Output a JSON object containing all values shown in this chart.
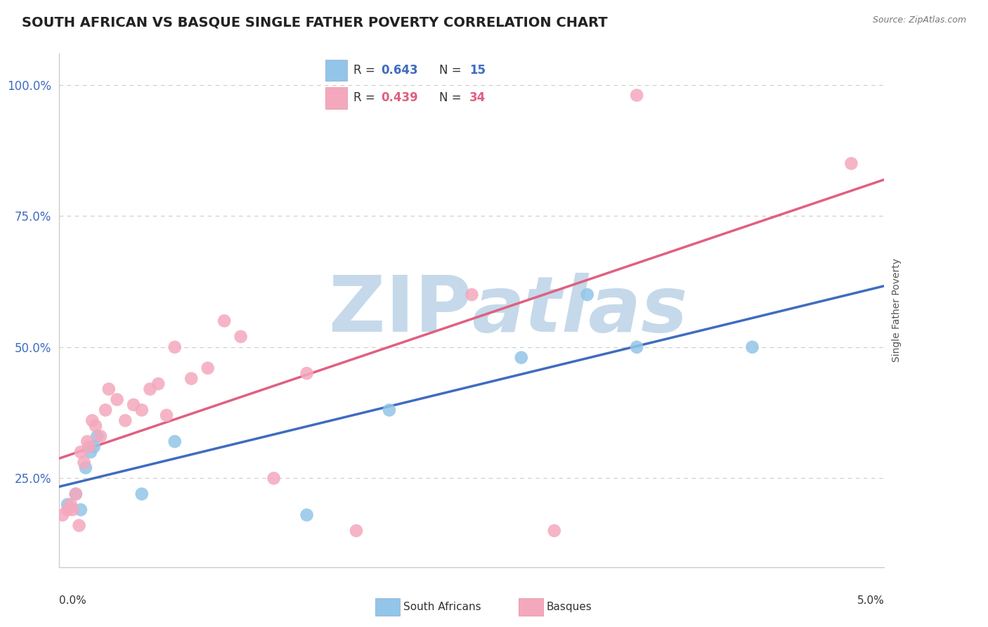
{
  "title": "SOUTH AFRICAN VS BASQUE SINGLE FATHER POVERTY CORRELATION CHART",
  "source": "Source: ZipAtlas.com",
  "ylabel": "Single Father Poverty",
  "xlim": [
    0.0,
    5.0
  ],
  "ylim": [
    0.08,
    1.06
  ],
  "yticks": [
    0.25,
    0.5,
    0.75,
    1.0
  ],
  "ytick_labels": [
    "25.0%",
    "50.0%",
    "75.0%",
    "100.0%"
  ],
  "sa_color": "#92C5E8",
  "basque_color": "#F4A8BE",
  "sa_line_color": "#3F6CC0",
  "basque_line_color": "#E06080",
  "sa_R": 0.643,
  "sa_N": 15,
  "basque_R": 0.439,
  "basque_N": 34,
  "sa_x": [
    0.05,
    0.1,
    0.13,
    0.16,
    0.19,
    0.21,
    0.23,
    0.5,
    0.7,
    1.5,
    2.0,
    2.8,
    3.2,
    3.5,
    4.2
  ],
  "sa_y": [
    0.2,
    0.22,
    0.19,
    0.27,
    0.3,
    0.31,
    0.33,
    0.22,
    0.32,
    0.18,
    0.38,
    0.48,
    0.6,
    0.5,
    0.5
  ],
  "basque_x": [
    0.02,
    0.05,
    0.07,
    0.08,
    0.1,
    0.12,
    0.13,
    0.15,
    0.17,
    0.18,
    0.2,
    0.22,
    0.25,
    0.28,
    0.3,
    0.35,
    0.4,
    0.45,
    0.5,
    0.55,
    0.6,
    0.65,
    0.7,
    0.8,
    0.9,
    1.0,
    1.1,
    1.3,
    1.5,
    1.8,
    2.5,
    3.0,
    3.5,
    4.8
  ],
  "basque_y": [
    0.18,
    0.19,
    0.2,
    0.19,
    0.22,
    0.16,
    0.3,
    0.28,
    0.32,
    0.31,
    0.36,
    0.35,
    0.33,
    0.38,
    0.42,
    0.4,
    0.36,
    0.39,
    0.38,
    0.42,
    0.43,
    0.37,
    0.5,
    0.44,
    0.46,
    0.55,
    0.52,
    0.25,
    0.45,
    0.15,
    0.6,
    0.15,
    0.98,
    0.85
  ],
  "watermark_line1": "ZIP",
  "watermark_line2": "atlas",
  "watermark_color": "#C5D9EA",
  "background_color": "#FFFFFF",
  "grid_color": "#CCCCCC",
  "title_fontsize": 14,
  "legend_fontsize": 12,
  "bottom_legend": [
    "South Africans",
    "Basques"
  ]
}
